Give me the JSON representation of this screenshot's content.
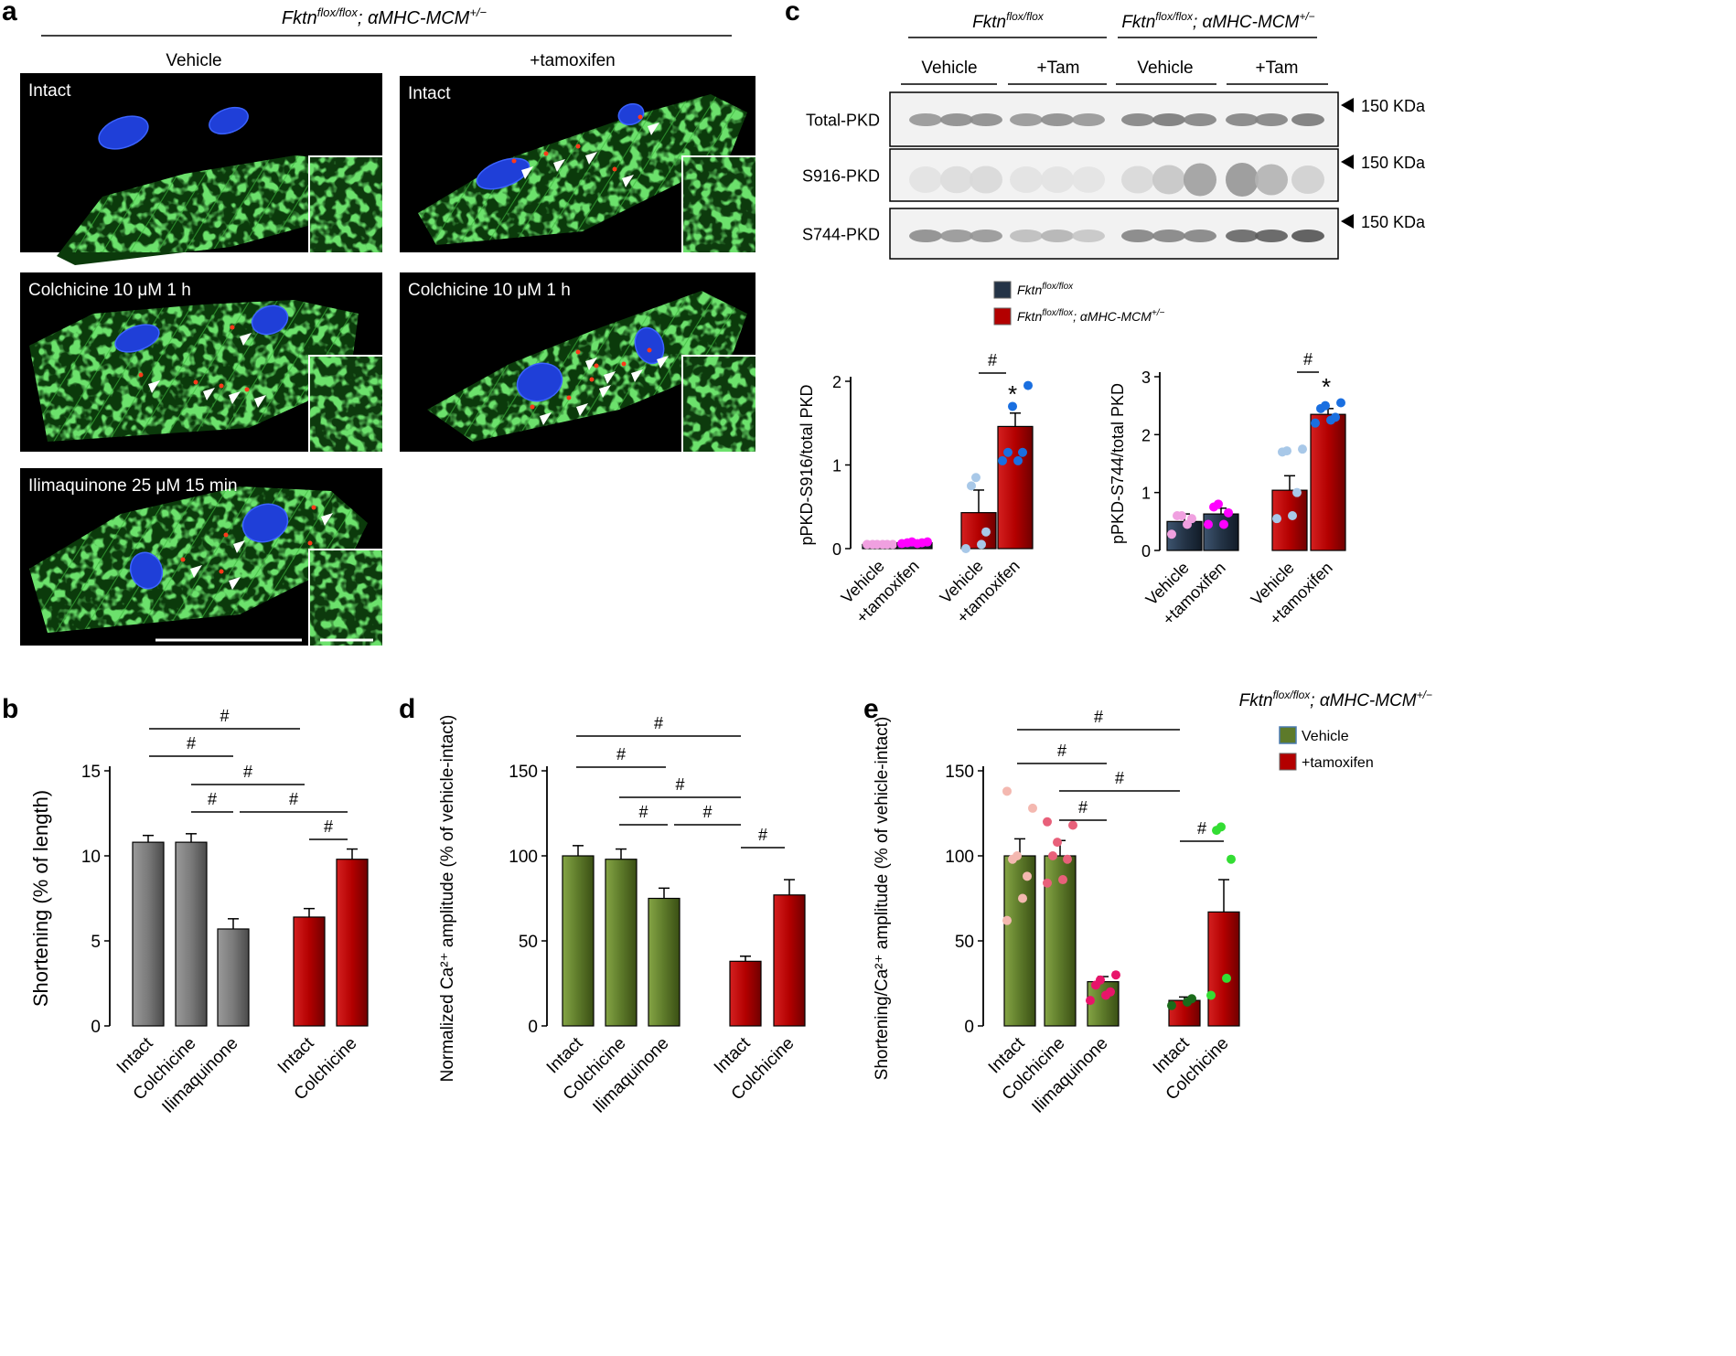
{
  "panel_letters": {
    "a": "a",
    "b": "b",
    "c": "c",
    "d": "d",
    "e": "e"
  },
  "panel_a": {
    "genotype_base": "Fktn",
    "genotype_sup": "flox/flox",
    "genotype_mid": "; αMHC-MCM",
    "genotype_sup2": "+/−",
    "col_vehicle": "Vehicle",
    "col_tamoxifen": "+tamoxifen",
    "labels": {
      "intact_v": "Intact",
      "intact_t": "Intact",
      "colch_v": "Colchicine 10 μM 1 h",
      "colch_t": "Colchicine 10 μM 1 h",
      "ilima": "Ilimaquinone 25 μM 15 min"
    }
  },
  "panel_c": {
    "groups": [
      "Fktn",
      "Fktn"
    ],
    "group_sups": [
      "flox/flox",
      "flox/flox"
    ],
    "group2_suffix": "; αMHC-MCM",
    "group2_sup": "+/−",
    "lanes": [
      "Vehicle",
      "+Tam",
      "Vehicle",
      "+Tam"
    ],
    "blots": [
      "Total-PKD",
      "S916-PKD",
      "S744-PKD"
    ],
    "marker": "150 KDa",
    "legend": [
      {
        "base": "Fktn",
        "sup": "flox/flox",
        "suffix": "",
        "sup2": "",
        "color": "#243447"
      },
      {
        "base": "Fktn",
        "sup": "flox/flox",
        "suffix": "; αMHC-MCM",
        "sup2": "+/−",
        "color": "#b30000"
      }
    ]
  },
  "chart_data": [
    {
      "panel": "c-left",
      "type": "bar",
      "ylabel": "pPKD-S916/total PKD",
      "ylim": [
        0,
        2
      ],
      "yticks": [
        0,
        1,
        2
      ],
      "categories": [
        "Vehicle",
        "+tamoxifen",
        "Vehicle",
        "+tamoxifen"
      ],
      "values": [
        0.05,
        0.07,
        0.43,
        1.46
      ],
      "errors": [
        0.01,
        0.01,
        0.27,
        0.16
      ],
      "colors": [
        "#243447",
        "#243447",
        "#b30000",
        "#b30000"
      ],
      "points": [
        [
          0.05,
          0.05,
          0.05,
          0.05,
          0.05,
          0.05
        ],
        [
          0.06,
          0.06,
          0.07,
          0.07,
          0.08,
          0.08
        ],
        [
          0.0,
          0.05,
          0.2,
          0.75,
          0.85
        ],
        [
          1.05,
          1.05,
          1.15,
          1.15,
          1.7,
          1.95
        ]
      ],
      "annotations": {
        "hash": "#",
        "star": "*"
      }
    },
    {
      "panel": "c-right",
      "type": "bar",
      "ylabel": "pPKD-S744/total PKD",
      "ylim": [
        0,
        3
      ],
      "yticks": [
        0,
        1,
        2,
        3
      ],
      "categories": [
        "Vehicle",
        "+tamoxifen",
        "Vehicle",
        "+tamoxifen"
      ],
      "values": [
        0.5,
        0.63,
        1.04,
        2.35
      ],
      "errors": [
        0.13,
        0.1,
        0.25,
        0.1
      ],
      "colors": [
        "#243447",
        "#243447",
        "#b30000",
        "#b30000"
      ],
      "points": [
        [
          0.28,
          0.45,
          0.55,
          0.6,
          0.6
        ],
        [
          0.45,
          0.45,
          0.65,
          0.75,
          0.8
        ],
        [
          0.55,
          0.6,
          1.0,
          1.7,
          1.72,
          1.75
        ],
        [
          2.2,
          2.25,
          2.3,
          2.45,
          2.5,
          2.55
        ]
      ],
      "annotations": {
        "hash": "#",
        "star": "*"
      }
    },
    {
      "panel": "b",
      "type": "bar",
      "ylabel": "Shortening (% of length)",
      "ylim": [
        0,
        15
      ],
      "yticks": [
        0,
        5,
        10,
        15
      ],
      "categories": [
        "Intact",
        "Colchicine",
        "Ilimaquinone",
        "Intact",
        "Colchicine"
      ],
      "values": [
        10.8,
        10.8,
        5.7,
        6.4,
        9.8
      ],
      "errors": [
        0.4,
        0.5,
        0.6,
        0.5,
        0.6
      ],
      "colors": [
        "#7a7a7a",
        "#7a7a7a",
        "#7a7a7a",
        "#b30000",
        "#b30000"
      ],
      "annotations": {
        "hash": "#"
      }
    },
    {
      "panel": "d",
      "type": "bar",
      "ylabel": "Normalized Ca²⁺ amplitude (% of vehicle-intact)",
      "ylim": [
        0,
        150
      ],
      "yticks": [
        0,
        50,
        100,
        150
      ],
      "categories": [
        "Intact",
        "Colchicine",
        "Ilimaquinone",
        "Intact",
        "Colchicine"
      ],
      "values": [
        100,
        98,
        75,
        38,
        77
      ],
      "errors": [
        6,
        6,
        6,
        3,
        9
      ],
      "colors": [
        "#5d7a2a",
        "#5d7a2a",
        "#5d7a2a",
        "#b30000",
        "#b30000"
      ],
      "annotations": {
        "hash": "#"
      }
    },
    {
      "panel": "e",
      "type": "bar",
      "ylabel": "Shortening/Ca²⁺ amplitude (% of vehicle-intact)",
      "ylim": [
        0,
        150
      ],
      "yticks": [
        0,
        50,
        100,
        150
      ],
      "categories": [
        "Intact",
        "Colchicine",
        "Ilimaquinone",
        "Intact",
        "Colchicine"
      ],
      "values": [
        100,
        100,
        26,
        15,
        67
      ],
      "errors": [
        10,
        9,
        3,
        2,
        19
      ],
      "colors": [
        "#5d7a2a",
        "#5d7a2a",
        "#5d7a2a",
        "#b30000",
        "#b30000"
      ],
      "points": [
        [
          62,
          75,
          88,
          98,
          100,
          128,
          138
        ],
        [
          84,
          86,
          98,
          100,
          108,
          118,
          120
        ],
        [
          15,
          18,
          20,
          24,
          27,
          30
        ],
        [
          12,
          14,
          16
        ],
        [
          18,
          28,
          98,
          115,
          117
        ]
      ],
      "point_colors": [
        "#f4b8b0",
        "#e8607a",
        "#e8146a",
        "#1a6b1a",
        "#33dd33"
      ],
      "annotations": {
        "hash": "#"
      }
    }
  ],
  "panel_e_legend": {
    "genotype_base": "Fktn",
    "genotype_sup": "flox/flox",
    "genotype_mid": "; αMHC-MCM",
    "genotype_sup2": "+/−",
    "items": [
      {
        "label": "Vehicle",
        "color": "#5d7a2a"
      },
      {
        "label": "+tamoxifen",
        "color": "#b30000"
      }
    ]
  }
}
